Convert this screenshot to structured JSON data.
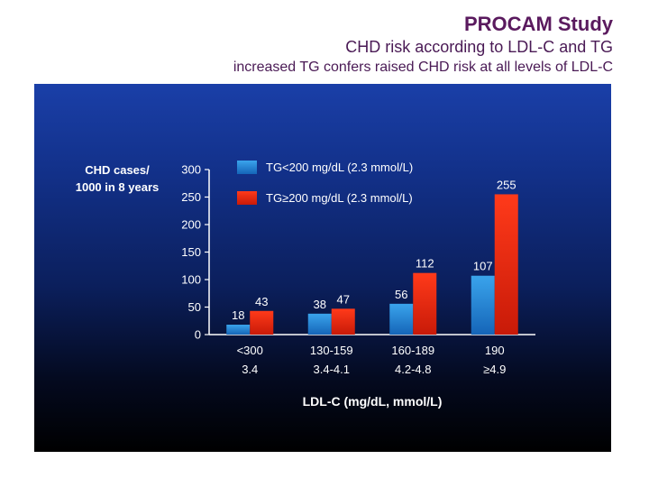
{
  "header": {
    "title": "PROCAM Study",
    "subtitle": "CHD risk according to LDL-C and TG",
    "note": "increased TG confers raised CHD risk at all levels of LDL-C"
  },
  "colors": {
    "series_low": "#2a8fd8",
    "series_high": "#ee2a10",
    "axis": "#ffffff"
  },
  "chart_data": {
    "type": "bar",
    "ylabel_lines": [
      "CHD cases/",
      "1000 in 8 years"
    ],
    "xlabel": "LDL-C (mg/dL, mmol/L)",
    "ylim": [
      0,
      300
    ],
    "yticks": [
      0,
      50,
      100,
      150,
      200,
      250,
      300
    ],
    "grid": false,
    "legend_position": "top-left",
    "categories": [
      {
        "line1": "<300",
        "line2": "3.4"
      },
      {
        "line1": "130-159",
        "line2": "3.4-4.1"
      },
      {
        "line1": "160-189",
        "line2": "4.2-4.8"
      },
      {
        "line1": "190",
        "line2": "≥4.9"
      }
    ],
    "series": [
      {
        "name": "TG<200 mg/dL (2.3 mmol/L)",
        "values": [
          18,
          38,
          56,
          107
        ]
      },
      {
        "name": "TG≥200 mg/dL (2.3 mmol/L)",
        "values": [
          43,
          47,
          112,
          255
        ]
      }
    ]
  }
}
